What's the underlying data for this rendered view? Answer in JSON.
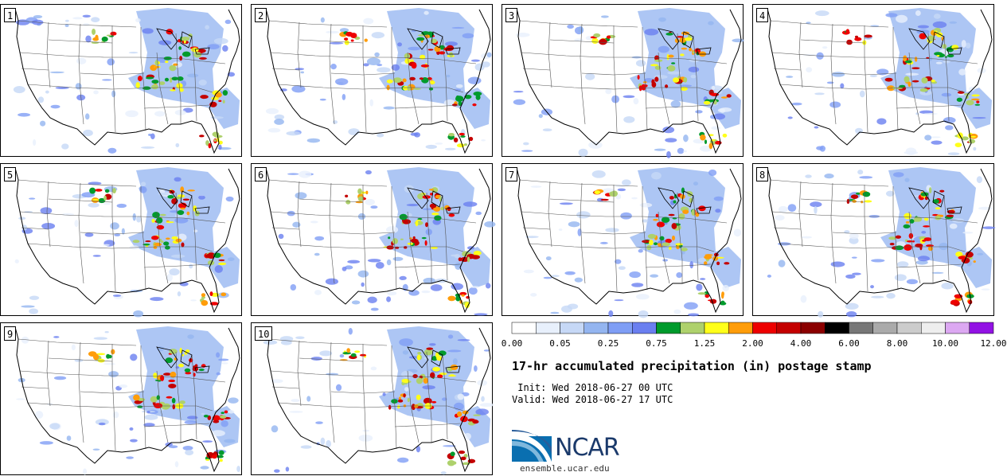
{
  "members": [
    {
      "label": "1"
    },
    {
      "label": "2"
    },
    {
      "label": "3"
    },
    {
      "label": "4"
    },
    {
      "label": "5"
    },
    {
      "label": "6"
    },
    {
      "label": "7"
    },
    {
      "label": "8"
    },
    {
      "label": "9"
    },
    {
      "label": "10"
    }
  ],
  "title": "17-hr accumulated precipitation (in) postage stamp",
  "init": " Init: Wed 2018-06-27 00 UTC",
  "valid": "Valid: Wed 2018-06-27 17 UTC",
  "logo": {
    "name": "NCAR",
    "site": "ensemble.ucar.edu"
  },
  "colorbar": {
    "colors": [
      "#ffffff",
      "#e8f0fc",
      "#c6d8f6",
      "#94b5f0",
      "#7f9ef5",
      "#6a7ff0",
      "#009a2c",
      "#aed16c",
      "#ffff1a",
      "#ff9d0a",
      "#ee0000",
      "#c40000",
      "#8b0000",
      "#000000",
      "#777777",
      "#aaaaaa",
      "#cccccc",
      "#eeeeee",
      "#dca8f2",
      "#9212e4"
    ],
    "ticks": [
      "0.00",
      "0.05",
      "0.25",
      "0.75",
      "1.25",
      "2.00",
      "4.00",
      "6.00",
      "8.00",
      "10.00",
      "12.00"
    ]
  }
}
